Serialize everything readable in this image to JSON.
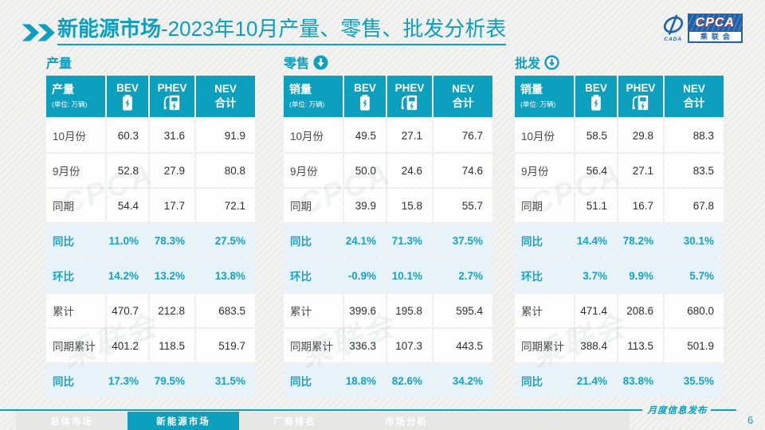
{
  "slide": {
    "title": {
      "highlight": "新能源市场",
      "rest": "-2023年10月产量、零售、批发分析表"
    },
    "publication_label": "月度信息发布",
    "page_number": "6"
  },
  "logo": {
    "cada": "CADA",
    "cpca": "CPCA",
    "cpca_sub": "乘联会"
  },
  "colors": {
    "accent": "#0c9fbe",
    "highlight_bg": "#e7f3f8",
    "highlight_text": "#17a3c5"
  },
  "watermark": [
    "CPCA",
    "乘联会"
  ],
  "tables": [
    {
      "section_title": "产量",
      "header": {
        "label": "产量",
        "unit": "(单位: 万辆)",
        "bev": "BEV",
        "phev": "PHEV",
        "nev_line1": "NEV",
        "nev_line2": "合计"
      },
      "rows": [
        {
          "label": "10月份",
          "bev": "60.3",
          "phev": "31.6",
          "nev": "91.9",
          "highlight": false
        },
        {
          "label": "9月份",
          "bev": "52.8",
          "phev": "27.9",
          "nev": "80.8",
          "highlight": false
        },
        {
          "label": "同期",
          "bev": "54.4",
          "phev": "17.7",
          "nev": "72.1",
          "highlight": false
        },
        {
          "label": "同比",
          "bev": "11.0%",
          "phev": "78.3%",
          "nev": "27.5%",
          "highlight": true
        },
        {
          "label": "环比",
          "bev": "14.2%",
          "phev": "13.2%",
          "nev": "13.8%",
          "highlight": true
        },
        {
          "label": "累计",
          "bev": "470.7",
          "phev": "212.8",
          "nev": "683.5",
          "highlight": false
        },
        {
          "label": "同期累计",
          "bev": "401.2",
          "phev": "118.5",
          "nev": "519.7",
          "highlight": false
        },
        {
          "label": "同比",
          "bev": "17.3%",
          "phev": "79.5%",
          "nev": "31.5%",
          "highlight": true
        }
      ]
    },
    {
      "section_title": "零售",
      "header": {
        "label": "销量",
        "unit": "(单位: 万辆)",
        "bev": "BEV",
        "phev": "PHEV",
        "nev_line1": "NEV",
        "nev_line2": "合计"
      },
      "rows": [
        {
          "label": "10月份",
          "bev": "49.5",
          "phev": "27.1",
          "nev": "76.7",
          "highlight": false
        },
        {
          "label": "9月份",
          "bev": "50.0",
          "phev": "24.6",
          "nev": "74.6",
          "highlight": false
        },
        {
          "label": "同期",
          "bev": "39.9",
          "phev": "15.8",
          "nev": "55.7",
          "highlight": false
        },
        {
          "label": "同比",
          "bev": "24.1%",
          "phev": "71.3%",
          "nev": "37.5%",
          "highlight": true
        },
        {
          "label": "环比",
          "bev": "-0.9%",
          "phev": "10.1%",
          "nev": "2.7%",
          "highlight": true
        },
        {
          "label": "累计",
          "bev": "399.6",
          "phev": "195.8",
          "nev": "595.4",
          "highlight": false
        },
        {
          "label": "同期累计",
          "bev": "336.3",
          "phev": "107.3",
          "nev": "443.5",
          "highlight": false
        },
        {
          "label": "同比",
          "bev": "18.8%",
          "phev": "82.6%",
          "nev": "34.2%",
          "highlight": true
        }
      ]
    },
    {
      "section_title": "批发",
      "header": {
        "label": "销量",
        "unit": "(单位: 万辆)",
        "bev": "BEV",
        "phev": "PHEV",
        "nev_line1": "NEV",
        "nev_line2": "合计"
      },
      "rows": [
        {
          "label": "10月份",
          "bev": "58.5",
          "phev": "29.8",
          "nev": "88.3",
          "highlight": false
        },
        {
          "label": "9月份",
          "bev": "56.4",
          "phev": "27.1",
          "nev": "83.5",
          "highlight": false
        },
        {
          "label": "同期",
          "bev": "51.1",
          "phev": "16.7",
          "nev": "67.8",
          "highlight": false
        },
        {
          "label": "同比",
          "bev": "14.4%",
          "phev": "78.2%",
          "nev": "30.1%",
          "highlight": true
        },
        {
          "label": "环比",
          "bev": "3.7%",
          "phev": "9.9%",
          "nev": "5.7%",
          "highlight": true
        },
        {
          "label": "累计",
          "bev": "471.4",
          "phev": "208.6",
          "nev": "680.0",
          "highlight": false
        },
        {
          "label": "同期累计",
          "bev": "388.4",
          "phev": "113.5",
          "nev": "501.9",
          "highlight": false
        },
        {
          "label": "同比",
          "bev": "21.4%",
          "phev": "83.8%",
          "nev": "35.5%",
          "highlight": true
        }
      ]
    }
  ],
  "footer": {
    "tabs": [
      {
        "label": "总体市场",
        "active": false
      },
      {
        "label": "新能源市场",
        "active": true
      },
      {
        "label": "厂商排名",
        "active": false
      },
      {
        "label": "市场分析",
        "active": false
      }
    ]
  }
}
